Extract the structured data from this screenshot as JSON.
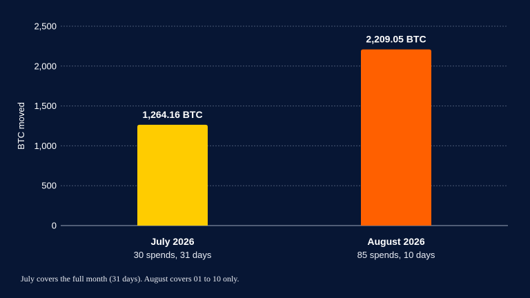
{
  "chart_data": {
    "type": "bar",
    "title": "",
    "xlabel": "",
    "ylabel": "BTC moved",
    "ylim": [
      0,
      2500
    ],
    "yticks": [
      0,
      500,
      1000,
      1500,
      2000,
      2500
    ],
    "ytick_labels": [
      "0",
      "500",
      "1,000",
      "1,500",
      "2,000",
      "2,500"
    ],
    "grid": true,
    "categories": [
      "July 2026",
      "August 2026"
    ],
    "category_subtitles": [
      "30 spends, 31 days",
      "85 spends, 10 days"
    ],
    "values": [
      1264.16,
      2209.05
    ],
    "value_labels": [
      "1,264.16 BTC",
      "2,209.05 BTC"
    ],
    "colors": [
      "#FFCC00",
      "#FF6000"
    ]
  },
  "footnote": "July covers the full month (31 days). August covers 01 to 10 only."
}
